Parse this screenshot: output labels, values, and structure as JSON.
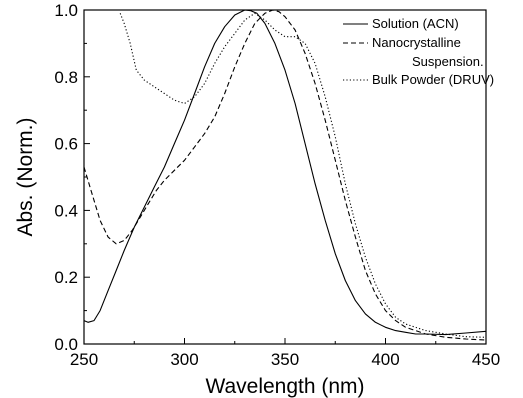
{
  "chart_data": {
    "type": "line",
    "title": "",
    "xlabel": "Wavelength (nm)",
    "ylabel": "Abs. (Norm.)",
    "xlim": [
      250,
      450
    ],
    "ylim": [
      0.0,
      1.0
    ],
    "xticks": [
      250,
      300,
      350,
      400,
      450
    ],
    "xtick_labels": [
      "250",
      "300",
      "350",
      "400",
      "450"
    ],
    "yticks": [
      0.0,
      0.2,
      0.4,
      0.6,
      0.8,
      1.0
    ],
    "ytick_labels": [
      "0.0",
      "0.2",
      "0.4",
      "0.6",
      "0.8",
      "1.0"
    ],
    "grid": false,
    "legend_position": "top-right",
    "legend_lines": [
      "Solution (ACN)",
      "Nanocrystalline",
      "Suspension.",
      "Bulk Powder (DRUV)"
    ],
    "series": [
      {
        "name": "Solution (ACN)",
        "style": "solid",
        "x": [
          250,
          252,
          255,
          258,
          262,
          266,
          270,
          275,
          280,
          285,
          290,
          295,
          300,
          305,
          310,
          315,
          320,
          325,
          330,
          333,
          336,
          340,
          345,
          350,
          355,
          360,
          365,
          370,
          375,
          380,
          385,
          390,
          395,
          400,
          405,
          410,
          415,
          420,
          430,
          440,
          450
        ],
        "y": [
          0.07,
          0.065,
          0.07,
          0.1,
          0.16,
          0.22,
          0.28,
          0.35,
          0.41,
          0.47,
          0.53,
          0.6,
          0.67,
          0.75,
          0.83,
          0.9,
          0.95,
          0.985,
          1.0,
          0.998,
          0.99,
          0.96,
          0.9,
          0.82,
          0.72,
          0.6,
          0.48,
          0.37,
          0.27,
          0.19,
          0.13,
          0.09,
          0.065,
          0.05,
          0.04,
          0.035,
          0.03,
          0.03,
          0.028,
          0.033,
          0.038
        ]
      },
      {
        "name": "Nanocrystalline Suspension.",
        "style": "dashed",
        "x": [
          250,
          254,
          258,
          262,
          266,
          270,
          274,
          278,
          282,
          286,
          290,
          295,
          300,
          305,
          310,
          315,
          320,
          325,
          330,
          335,
          340,
          344,
          347,
          350,
          355,
          360,
          365,
          370,
          375,
          380,
          385,
          390,
          395,
          400,
          405,
          410,
          415,
          420,
          430,
          440,
          450
        ],
        "y": [
          0.53,
          0.45,
          0.37,
          0.32,
          0.3,
          0.31,
          0.34,
          0.38,
          0.42,
          0.46,
          0.49,
          0.52,
          0.55,
          0.59,
          0.63,
          0.68,
          0.75,
          0.83,
          0.9,
          0.96,
          0.99,
          1.0,
          0.995,
          0.98,
          0.94,
          0.87,
          0.78,
          0.67,
          0.55,
          0.43,
          0.32,
          0.22,
          0.15,
          0.1,
          0.07,
          0.05,
          0.04,
          0.03,
          0.02,
          0.015,
          0.012
        ]
      },
      {
        "name": "Bulk Powder (DRUV)",
        "style": "dotted",
        "x": [
          268,
          270,
          273,
          276,
          280,
          285,
          290,
          295,
          300,
          305,
          310,
          315,
          320,
          325,
          330,
          335,
          340,
          345,
          350,
          355,
          360,
          365,
          370,
          375,
          380,
          385,
          390,
          395,
          400,
          405,
          410,
          415,
          420,
          430,
          440,
          450
        ],
        "y": [
          0.99,
          0.96,
          0.9,
          0.82,
          0.79,
          0.77,
          0.75,
          0.73,
          0.72,
          0.74,
          0.78,
          0.84,
          0.89,
          0.93,
          0.97,
          0.99,
          0.97,
          0.94,
          0.92,
          0.92,
          0.9,
          0.84,
          0.74,
          0.62,
          0.48,
          0.36,
          0.26,
          0.18,
          0.12,
          0.08,
          0.06,
          0.05,
          0.04,
          0.03,
          0.022,
          0.02
        ]
      }
    ]
  }
}
